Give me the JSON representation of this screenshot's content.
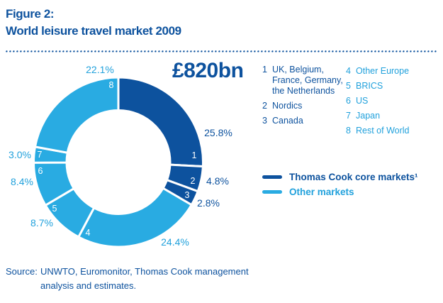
{
  "figure": {
    "label": "Figure 2:",
    "title": "World leisure travel market 2009"
  },
  "chart_data": {
    "type": "donut",
    "title": "World leisure travel market 2009",
    "total_label": "£820bn",
    "units": "%",
    "start_angle_deg": 0,
    "direction": "clockwise",
    "legend_position": "right",
    "segments": [
      {
        "id": "1",
        "label": "UK, Belgium, France, Germany, the Netherlands",
        "value": 25.8,
        "pct_label": "25.8%",
        "group": "core"
      },
      {
        "id": "2",
        "label": "Nordics",
        "value": 4.8,
        "pct_label": "4.8%",
        "group": "core"
      },
      {
        "id": "3",
        "label": "Canada",
        "value": 2.8,
        "pct_label": "2.8%",
        "group": "core"
      },
      {
        "id": "4",
        "label": "Other Europe",
        "value": 24.4,
        "pct_label": "24.4%",
        "group": "other"
      },
      {
        "id": "5",
        "label": "BRICS",
        "value": 8.7,
        "pct_label": "8.7%",
        "group": "other"
      },
      {
        "id": "6",
        "label": "US",
        "value": 8.4,
        "pct_label": "8.4%",
        "group": "other"
      },
      {
        "id": "7",
        "label": "Japan",
        "value": 3.0,
        "pct_label": "3.0%",
        "group": "other"
      },
      {
        "id": "8",
        "label": "Rest of World",
        "value": 22.1,
        "pct_label": "22.1%",
        "group": "other"
      }
    ],
    "groups": {
      "core": {
        "label": "Thomas Cook core markets¹",
        "color": "#0d529e"
      },
      "other": {
        "label": "Other markets",
        "color": "#29abe2"
      }
    }
  },
  "source": {
    "prefix": "Source:",
    "text": "UNWTO, Euromonitor, Thomas Cook management analysis and estimates."
  },
  "colors": {
    "dark_blue": "#0d529e",
    "light_blue": "#29abe2",
    "light_text": "#21a1dc",
    "background": "#ffffff"
  }
}
